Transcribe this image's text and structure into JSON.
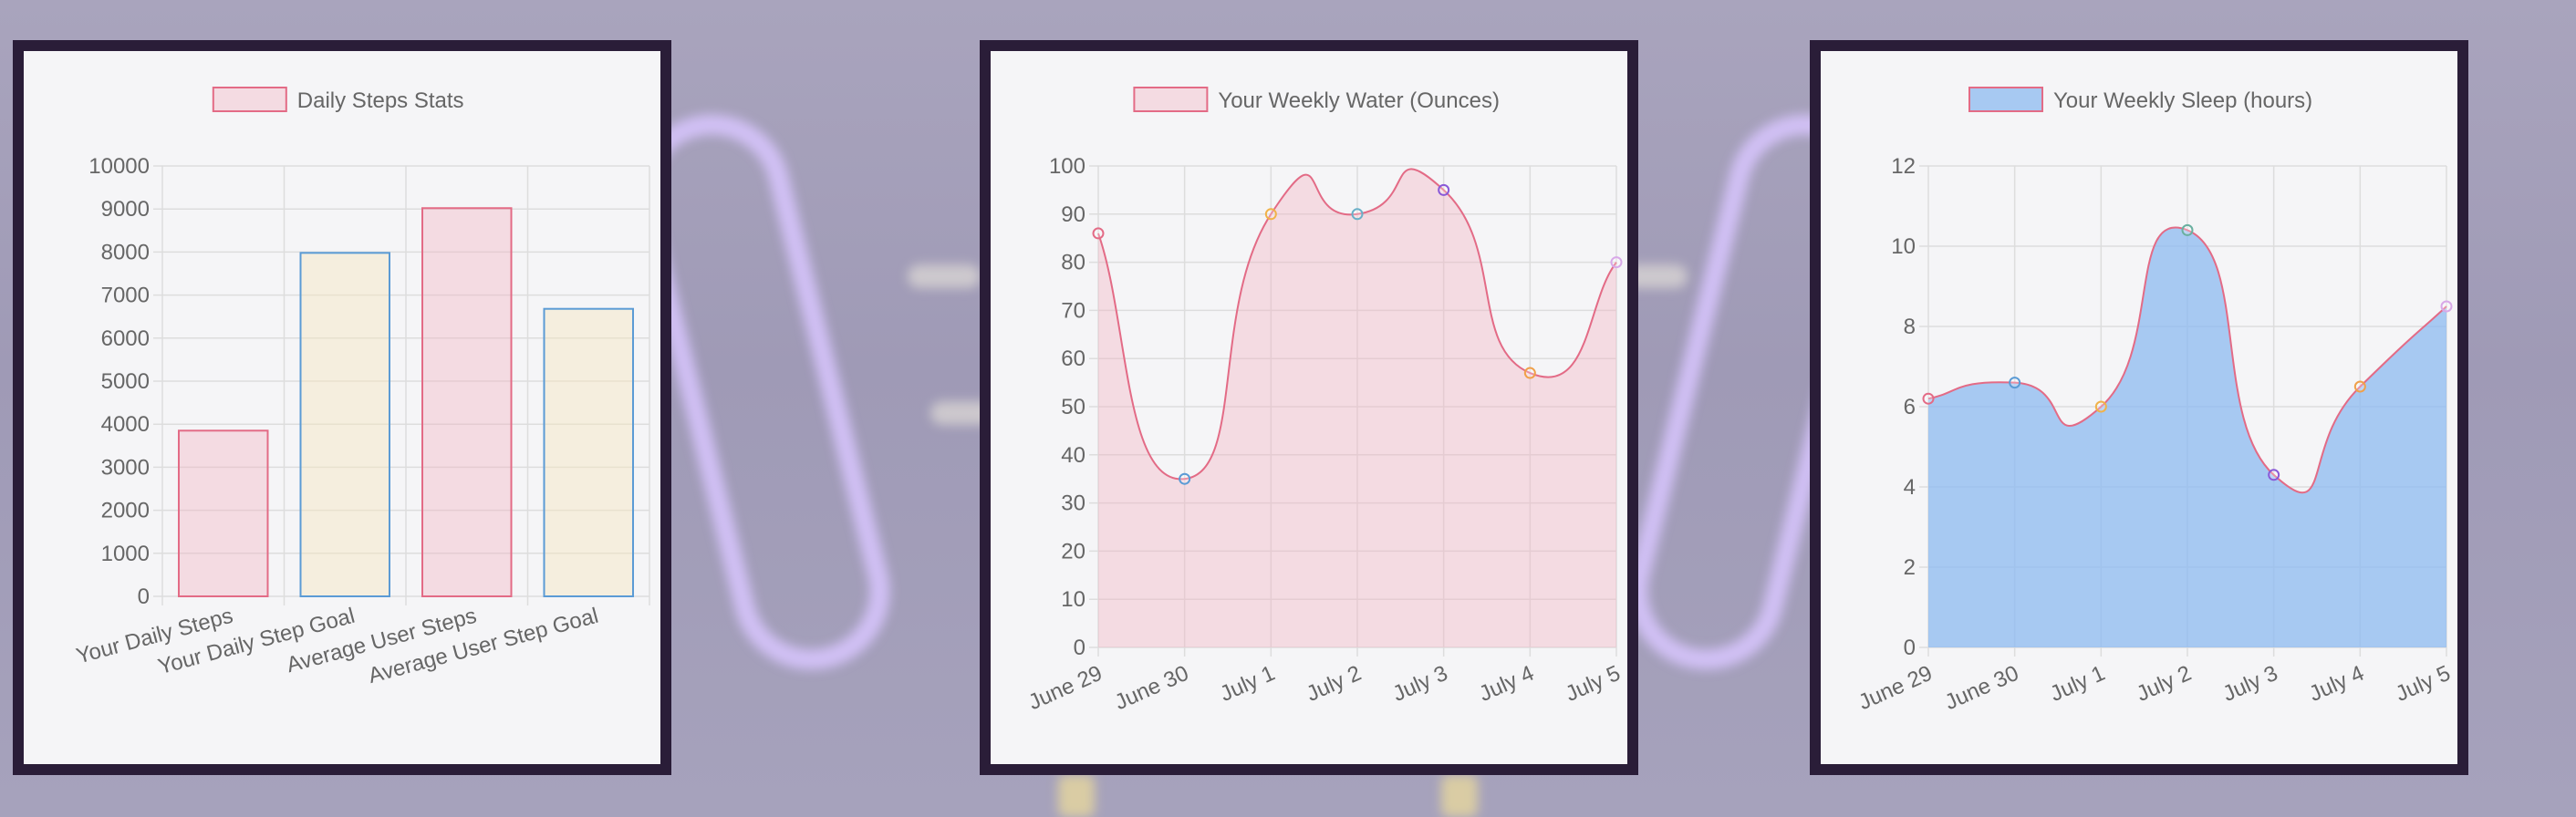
{
  "colors": {
    "pink_border": "#e36b86",
    "pink_fill": "rgba(242,180,196,0.40)",
    "blue_border": "#5b9bd5",
    "cream_fill": "rgba(247,230,190,0.45)",
    "sleep_fill": "rgba(140,185,240,0.75)",
    "grid": "#dddddd",
    "text": "#666666",
    "panel_border": "#2a1d38"
  },
  "chart_data": [
    {
      "type": "bar",
      "title": "Daily Steps Stats",
      "legend": "Daily Steps Stats",
      "legend_position": "top",
      "categories": [
        "Your Daily Steps",
        "Your Daily Step Goal",
        "Average User Steps",
        "Average User Step Goal"
      ],
      "values": [
        3850,
        7980,
        9020,
        6680
      ],
      "bar_styles": [
        "pink",
        "blue",
        "pink",
        "blue"
      ],
      "ylim": [
        0,
        10000
      ],
      "yticks": [
        "0",
        "1000",
        "2000",
        "3000",
        "4000",
        "5000",
        "6000",
        "7000",
        "8000",
        "9000",
        "10000"
      ],
      "grid": true
    },
    {
      "type": "area",
      "title": "Your Weekly Water (Ounces)",
      "legend": "Your Weekly Water (Ounces)",
      "legend_position": "top",
      "x": [
        "June 29",
        "June 30",
        "July 1",
        "July 2",
        "July 3",
        "July 4",
        "July 5"
      ],
      "values": [
        86,
        35,
        90,
        90,
        95,
        57,
        80
      ],
      "point_colors": [
        "#e36b86",
        "#5b9bd5",
        "#f0b24a",
        "#6ab0c8",
        "#8a5ad8",
        "#f0a04a",
        "#d8a8e8"
      ],
      "ylim": [
        0,
        100
      ],
      "yticks": [
        "0",
        "10",
        "20",
        "30",
        "40",
        "50",
        "60",
        "70",
        "80",
        "90",
        "100"
      ],
      "grid": true
    },
    {
      "type": "area",
      "title": "Your Weekly Sleep (hours)",
      "legend": "Your Weekly Sleep (hours)",
      "legend_position": "top",
      "x": [
        "June 29",
        "June 30",
        "July 1",
        "July 2",
        "July 3",
        "July 4",
        "July 5"
      ],
      "values": [
        6.2,
        6.6,
        6.0,
        10.4,
        4.3,
        6.5,
        8.5
      ],
      "point_colors": [
        "#e36b86",
        "#5b9bd5",
        "#f0b24a",
        "#6ab0a0",
        "#8a5ad8",
        "#f0a04a",
        "#d8a8e8"
      ],
      "ylim": [
        0,
        12
      ],
      "yticks": [
        "0",
        "2",
        "4",
        "6",
        "8",
        "10",
        "12"
      ],
      "grid": true
    }
  ]
}
